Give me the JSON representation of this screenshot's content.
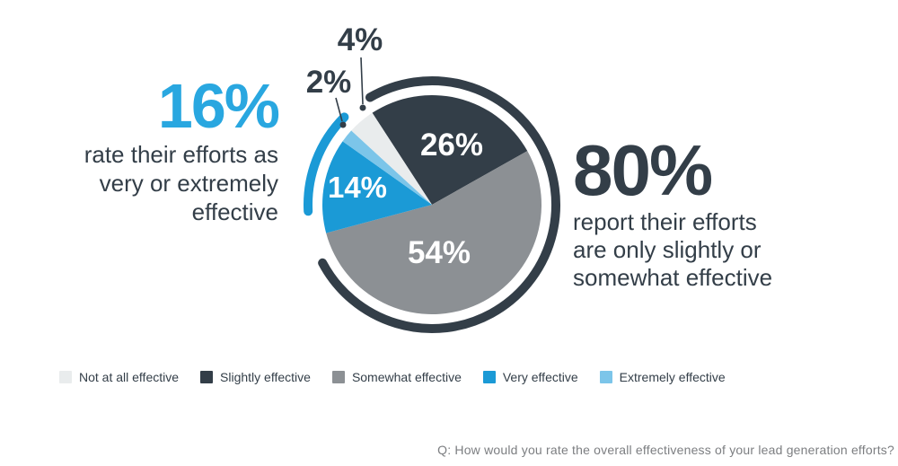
{
  "left_stat": {
    "value": "16%",
    "lines": [
      "rate their efforts as",
      "very or extremely",
      "effective"
    ],
    "color": "#29a7e0"
  },
  "right_stat": {
    "value": "80%",
    "lines": [
      "report their efforts",
      "are only slightly or",
      "somewhat effective"
    ],
    "color": "#333e48"
  },
  "legend": {
    "items": [
      {
        "label": "Not at all effective",
        "color": "#e9eced"
      },
      {
        "label": "Slightly effective",
        "color": "#333e48"
      },
      {
        "label": "Somewhat effective",
        "color": "#8c9094"
      },
      {
        "label": "Very effective",
        "color": "#1b9ad6"
      },
      {
        "label": "Extremely effective",
        "color": "#7cc5e9"
      }
    ]
  },
  "footer": {
    "question": "Q: How would you rate the overall effectiveness of your lead generation efforts?"
  },
  "chart_data": {
    "type": "pie",
    "start_angle_deg": -33,
    "slices": [
      {
        "label": "Slightly effective",
        "value": 26,
        "display": "26%",
        "color": "#333e48",
        "label_color": "#ffffff"
      },
      {
        "label": "Somewhat effective",
        "value": 54,
        "display": "54%",
        "color": "#8c9094",
        "label_color": "#ffffff"
      },
      {
        "label": "Very effective",
        "value": 14,
        "display": "14%",
        "color": "#1b9ad6",
        "label_color": "#ffffff"
      },
      {
        "label": "Extremely effective",
        "value": 2,
        "display": "2%",
        "color": "#7cc5e9",
        "label_color": "#333e48"
      },
      {
        "label": "Not at all effective",
        "value": 4,
        "display": "4%",
        "color": "#e9eced",
        "label_color": "#333e48"
      }
    ],
    "rings": [
      {
        "name": "80-percent-ring",
        "color": "#333e48",
        "from_deg": -30,
        "to_deg": 242
      },
      {
        "name": "16-percent-ring",
        "color": "#1b9ad6",
        "from_deg": 267,
        "to_deg": 315
      }
    ],
    "legend_position": "bottom",
    "annotations": [
      "16% rate their efforts as very or extremely effective",
      "80% report their efforts are only slightly or somewhat effective"
    ]
  }
}
